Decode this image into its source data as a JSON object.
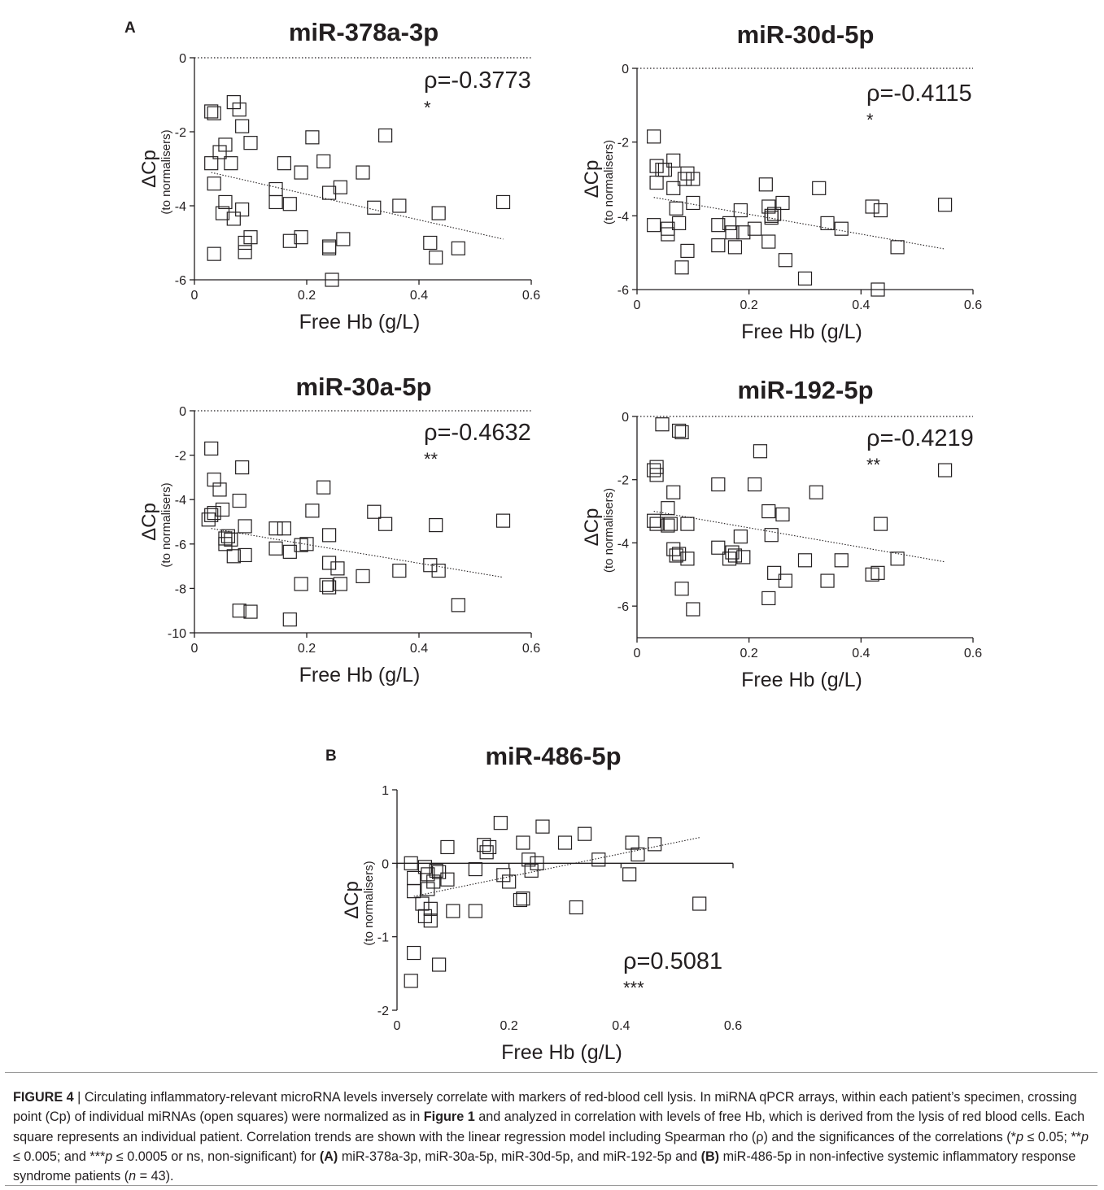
{
  "panel_labels": {
    "a": "A",
    "b": "B"
  },
  "chart_data": [
    {
      "type": "scatter",
      "title": "miR-378a-3p",
      "xlabel": "Free Hb (g/L)",
      "ylabel": "ΔCp",
      "ylabel_sub": "(to normalisers)",
      "xlim": [
        0,
        0.6
      ],
      "ylim": [
        -6,
        0
      ],
      "xticks": [
        "0",
        "0.2",
        "0.4",
        "0.6"
      ],
      "yticks": [
        "0",
        "-2",
        "-4",
        "-6"
      ],
      "rho": "ρ=-0.3773",
      "significance": "*",
      "reference_line_y": 0,
      "regression": {
        "x": [
          0.03,
          0.55
        ],
        "y": [
          -3.1,
          -4.9
        ]
      },
      "points": [
        [
          0.03,
          -1.45
        ],
        [
          0.035,
          -1.5
        ],
        [
          0.07,
          -1.2
        ],
        [
          0.08,
          -1.4
        ],
        [
          0.085,
          -1.85
        ],
        [
          0.055,
          -2.35
        ],
        [
          0.1,
          -2.3
        ],
        [
          0.045,
          -2.55
        ],
        [
          0.03,
          -2.85
        ],
        [
          0.065,
          -2.85
        ],
        [
          0.21,
          -2.15
        ],
        [
          0.34,
          -2.1
        ],
        [
          0.16,
          -2.85
        ],
        [
          0.23,
          -2.8
        ],
        [
          0.19,
          -3.1
        ],
        [
          0.3,
          -3.1
        ],
        [
          0.035,
          -3.4
        ],
        [
          0.145,
          -3.55
        ],
        [
          0.26,
          -3.5
        ],
        [
          0.24,
          -3.65
        ],
        [
          0.055,
          -3.9
        ],
        [
          0.145,
          -3.9
        ],
        [
          0.17,
          -3.95
        ],
        [
          0.32,
          -4.05
        ],
        [
          0.365,
          -4.0
        ],
        [
          0.085,
          -4.1
        ],
        [
          0.05,
          -4.2
        ],
        [
          0.07,
          -4.35
        ],
        [
          0.435,
          -4.2
        ],
        [
          0.55,
          -3.9
        ],
        [
          0.1,
          -4.85
        ],
        [
          0.19,
          -4.85
        ],
        [
          0.265,
          -4.9
        ],
        [
          0.17,
          -4.95
        ],
        [
          0.09,
          -5.0
        ],
        [
          0.24,
          -5.1
        ],
        [
          0.24,
          -5.15
        ],
        [
          0.42,
          -5.0
        ],
        [
          0.47,
          -5.15
        ],
        [
          0.035,
          -5.3
        ],
        [
          0.09,
          -5.25
        ],
        [
          0.43,
          -5.4
        ],
        [
          0.245,
          -6.0
        ]
      ]
    },
    {
      "type": "scatter",
      "title": "miR-30d-5p",
      "xlabel": "Free Hb (g/L)",
      "ylabel": "ΔCp",
      "ylabel_sub": "(to normalisers)",
      "xlim": [
        0,
        0.6
      ],
      "ylim": [
        -6,
        0
      ],
      "xticks": [
        "0",
        "0.2",
        "0.4",
        "0.6"
      ],
      "yticks": [
        "0",
        "-2",
        "-4",
        "-6"
      ],
      "rho": "ρ=-0.4115",
      "significance": "*",
      "reference_line_y": 0,
      "regression": {
        "x": [
          0.03,
          0.55
        ],
        "y": [
          -3.5,
          -4.9
        ]
      },
      "points": [
        [
          0.03,
          -1.85
        ],
        [
          0.035,
          -2.65
        ],
        [
          0.045,
          -2.75
        ],
        [
          0.05,
          -2.75
        ],
        [
          0.065,
          -2.5
        ],
        [
          0.035,
          -3.1
        ],
        [
          0.065,
          -3.25
        ],
        [
          0.085,
          -3.0
        ],
        [
          0.09,
          -2.85
        ],
        [
          0.1,
          -3.0
        ],
        [
          0.07,
          -3.8
        ],
        [
          0.1,
          -3.65
        ],
        [
          0.23,
          -3.15
        ],
        [
          0.325,
          -3.25
        ],
        [
          0.03,
          -4.25
        ],
        [
          0.055,
          -4.35
        ],
        [
          0.075,
          -4.2
        ],
        [
          0.145,
          -4.25
        ],
        [
          0.165,
          -4.2
        ],
        [
          0.185,
          -3.85
        ],
        [
          0.235,
          -3.75
        ],
        [
          0.26,
          -3.65
        ],
        [
          0.24,
          -4.0
        ],
        [
          0.245,
          -3.95
        ],
        [
          0.42,
          -3.75
        ],
        [
          0.435,
          -3.85
        ],
        [
          0.55,
          -3.7
        ],
        [
          0.34,
          -4.2
        ],
        [
          0.365,
          -4.35
        ],
        [
          0.055,
          -4.5
        ],
        [
          0.17,
          -4.45
        ],
        [
          0.19,
          -4.45
        ],
        [
          0.21,
          -4.35
        ],
        [
          0.145,
          -4.8
        ],
        [
          0.175,
          -4.85
        ],
        [
          0.235,
          -4.7
        ],
        [
          0.465,
          -4.85
        ],
        [
          0.09,
          -4.95
        ],
        [
          0.08,
          -5.4
        ],
        [
          0.265,
          -5.2
        ],
        [
          0.3,
          -5.7
        ],
        [
          0.43,
          -6.0
        ],
        [
          0.24,
          -4.05
        ]
      ]
    },
    {
      "type": "scatter",
      "title": "miR-30a-5p",
      "xlabel": "Free Hb (g/L)",
      "ylabel": "ΔCp",
      "ylabel_sub": "(to normalisers)",
      "xlim": [
        0,
        0.6
      ],
      "ylim": [
        -10,
        0
      ],
      "xticks": [
        "0",
        "0.2",
        "0.4",
        "0.6"
      ],
      "yticks": [
        "0",
        "-2",
        "-4",
        "-6",
        "-8",
        "-10"
      ],
      "rho": "ρ=-0.4632",
      "significance": "**",
      "reference_line_y": 0,
      "regression": {
        "x": [
          0.03,
          0.55
        ],
        "y": [
          -5.3,
          -7.5
        ]
      },
      "points": [
        [
          0.03,
          -1.7
        ],
        [
          0.035,
          -3.1
        ],
        [
          0.045,
          -3.55
        ],
        [
          0.085,
          -2.55
        ],
        [
          0.08,
          -4.05
        ],
        [
          0.05,
          -4.45
        ],
        [
          0.035,
          -4.6
        ],
        [
          0.03,
          -4.7
        ],
        [
          0.025,
          -4.9
        ],
        [
          0.21,
          -4.5
        ],
        [
          0.23,
          -3.45
        ],
        [
          0.32,
          -4.55
        ],
        [
          0.34,
          -5.1
        ],
        [
          0.43,
          -5.15
        ],
        [
          0.55,
          -4.95
        ],
        [
          0.09,
          -5.2
        ],
        [
          0.145,
          -5.3
        ],
        [
          0.16,
          -5.3
        ],
        [
          0.24,
          -5.6
        ],
        [
          0.055,
          -5.75
        ],
        [
          0.065,
          -5.8
        ],
        [
          0.055,
          -6.0
        ],
        [
          0.145,
          -6.2
        ],
        [
          0.19,
          -6.05
        ],
        [
          0.17,
          -6.35
        ],
        [
          0.07,
          -6.55
        ],
        [
          0.09,
          -6.5
        ],
        [
          0.24,
          -6.85
        ],
        [
          0.255,
          -7.1
        ],
        [
          0.365,
          -7.2
        ],
        [
          0.3,
          -7.45
        ],
        [
          0.42,
          -6.95
        ],
        [
          0.435,
          -7.2
        ],
        [
          0.19,
          -7.8
        ],
        [
          0.235,
          -7.85
        ],
        [
          0.24,
          -7.95
        ],
        [
          0.26,
          -7.8
        ],
        [
          0.47,
          -8.75
        ],
        [
          0.08,
          -9.0
        ],
        [
          0.1,
          -9.05
        ],
        [
          0.17,
          -9.4
        ],
        [
          0.06,
          -5.65
        ],
        [
          0.2,
          -6.0
        ]
      ]
    },
    {
      "type": "scatter",
      "title": "miR-192-5p",
      "xlabel": "Free Hb (g/L)",
      "ylabel": "ΔCp",
      "ylabel_sub": "(to normalisers)",
      "xlim": [
        0,
        0.6
      ],
      "ylim": [
        -7,
        0
      ],
      "xticks": [
        "0",
        "0.2",
        "0.4",
        "0.6"
      ],
      "yticks": [
        "0",
        "-2",
        "-4",
        "-6"
      ],
      "rho": "ρ=-0.4219",
      "significance": "**",
      "reference_line_y": 0,
      "regression": {
        "x": [
          0.03,
          0.55
        ],
        "y": [
          -3.0,
          -4.6
        ]
      },
      "points": [
        [
          0.045,
          -0.25
        ],
        [
          0.075,
          -0.45
        ],
        [
          0.08,
          -0.5
        ],
        [
          0.035,
          -1.6
        ],
        [
          0.03,
          -1.7
        ],
        [
          0.035,
          -1.85
        ],
        [
          0.22,
          -1.1
        ],
        [
          0.55,
          -1.7
        ],
        [
          0.145,
          -2.15
        ],
        [
          0.21,
          -2.15
        ],
        [
          0.065,
          -2.4
        ],
        [
          0.32,
          -2.4
        ],
        [
          0.055,
          -2.9
        ],
        [
          0.03,
          -3.3
        ],
        [
          0.035,
          -3.4
        ],
        [
          0.055,
          -3.45
        ],
        [
          0.09,
          -3.4
        ],
        [
          0.235,
          -3.0
        ],
        [
          0.26,
          -3.1
        ],
        [
          0.435,
          -3.4
        ],
        [
          0.24,
          -3.75
        ],
        [
          0.185,
          -3.8
        ],
        [
          0.145,
          -4.15
        ],
        [
          0.17,
          -4.3
        ],
        [
          0.175,
          -4.4
        ],
        [
          0.19,
          -4.45
        ],
        [
          0.065,
          -4.2
        ],
        [
          0.07,
          -4.4
        ],
        [
          0.09,
          -4.5
        ],
        [
          0.165,
          -4.5
        ],
        [
          0.3,
          -4.55
        ],
        [
          0.365,
          -4.55
        ],
        [
          0.465,
          -4.5
        ],
        [
          0.245,
          -4.95
        ],
        [
          0.42,
          -5.0
        ],
        [
          0.43,
          -4.95
        ],
        [
          0.265,
          -5.2
        ],
        [
          0.34,
          -5.2
        ],
        [
          0.08,
          -5.45
        ],
        [
          0.235,
          -5.75
        ],
        [
          0.1,
          -6.1
        ],
        [
          0.06,
          -3.4
        ],
        [
          0.075,
          -4.35
        ]
      ]
    },
    {
      "type": "scatter",
      "title": "miR-486-5p",
      "xlabel": "Free Hb (g/L)",
      "ylabel": "ΔCp",
      "ylabel_sub": "(to normalisers)",
      "xlim": [
        0,
        0.6
      ],
      "ylim": [
        -2,
        1
      ],
      "xticks": [
        "0",
        "0.2",
        "0.4",
        "0.6"
      ],
      "yticks": [
        "1",
        "0",
        "-1",
        "-2"
      ],
      "rho": "ρ=0.5081",
      "significance": "***",
      "reference_line_y": 0,
      "regression": {
        "x": [
          0.03,
          0.54
        ],
        "y": [
          -0.45,
          0.35
        ]
      },
      "points": [
        [
          0.025,
          0.0
        ],
        [
          0.03,
          -0.2
        ],
        [
          0.03,
          -0.38
        ],
        [
          0.045,
          -0.55
        ],
        [
          0.05,
          -0.05
        ],
        [
          0.055,
          -0.15
        ],
        [
          0.055,
          -0.35
        ],
        [
          0.05,
          -0.72
        ],
        [
          0.06,
          -0.78
        ],
        [
          0.06,
          -0.62
        ],
        [
          0.065,
          -0.25
        ],
        [
          0.07,
          -0.1
        ],
        [
          0.075,
          -0.12
        ],
        [
          0.09,
          -0.22
        ],
        [
          0.09,
          0.22
        ],
        [
          0.1,
          -0.65
        ],
        [
          0.14,
          -0.08
        ],
        [
          0.14,
          -0.65
        ],
        [
          0.155,
          0.25
        ],
        [
          0.16,
          0.15
        ],
        [
          0.165,
          0.22
        ],
        [
          0.185,
          0.55
        ],
        [
          0.19,
          -0.16
        ],
        [
          0.2,
          -0.25
        ],
        [
          0.22,
          -0.5
        ],
        [
          0.225,
          0.28
        ],
        [
          0.225,
          -0.48
        ],
        [
          0.235,
          0.05
        ],
        [
          0.24,
          -0.1
        ],
        [
          0.25,
          0.0
        ],
        [
          0.26,
          0.5
        ],
        [
          0.3,
          0.28
        ],
        [
          0.32,
          -0.6
        ],
        [
          0.335,
          0.4
        ],
        [
          0.36,
          0.05
        ],
        [
          0.415,
          -0.15
        ],
        [
          0.42,
          0.28
        ],
        [
          0.43,
          0.12
        ],
        [
          0.46,
          0.26
        ],
        [
          0.54,
          -0.55
        ],
        [
          0.03,
          -1.22
        ],
        [
          0.025,
          -1.6
        ],
        [
          0.075,
          -1.38
        ]
      ]
    }
  ],
  "caption": {
    "figure_label": "FIGURE 4",
    "sep": " | ",
    "t1": "Circulating inflammatory-relevant microRNA levels inversely correlate with markers of red-blood cell lysis. In miRNA qPCR arrays, within each patient’s specimen, crossing point (Cp) of individual miRNAs (open squares) were normalized as in ",
    "fig1_ref": "Figure 1",
    "t2": " and analyzed in correlation with levels of free Hb, which is derived from the lysis of red blood cells. Each square represents an individual patient. Correlation trends are shown with the linear regression model including Spearman rho (ρ) and the significances of the correlations (*",
    "p1": "p",
    "t3": " ≤ 0.05; **",
    "p2": "p",
    "t4": " ≤ 0.005; and ***",
    "p3": "p",
    "t5": " ≤ 0.0005 or ns, non-significant) for ",
    "a_ref": "(A)",
    "t6": " miR-378a-3p, miR-30a-5p, miR-30d-5p, and miR-192-5p and ",
    "b_ref": "(B)",
    "t7": " miR-486-5p in non-infective systemic inflammatory response syndrome patients (",
    "n_var": "n",
    "t8": " = 43)."
  }
}
